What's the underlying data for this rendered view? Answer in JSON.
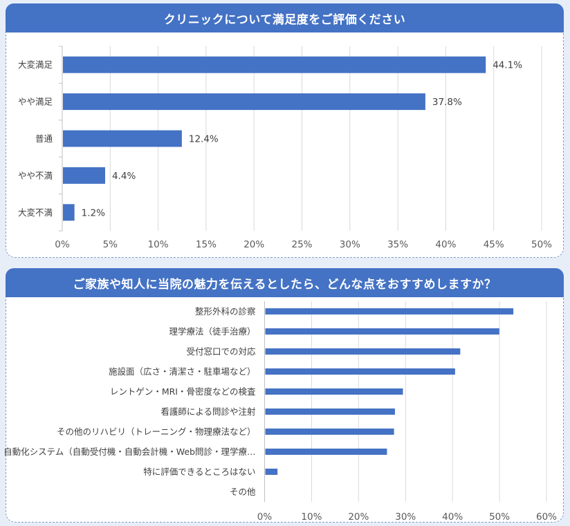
{
  "colors": {
    "bar": "#4472C4",
    "header": "#4472C4",
    "grid": "#D9D9D9",
    "background": "#E8EEF8"
  },
  "chart_data": [
    {
      "type": "bar",
      "orientation": "horizontal",
      "title": "クリニックについて満足度をご評価ください",
      "categories": [
        "大変満足",
        "やや満足",
        "普通",
        "やや不満",
        "大変不満"
      ],
      "values": [
        44.1,
        37.8,
        12.4,
        4.4,
        1.2
      ],
      "data_labels": [
        "44.1%",
        "37.8%",
        "12.4%",
        "4.4%",
        "1.2%"
      ],
      "xlim": [
        0,
        50
      ],
      "xticks": [
        0,
        5,
        10,
        15,
        20,
        25,
        30,
        35,
        40,
        45,
        50
      ],
      "xtick_labels": [
        "0%",
        "5%",
        "10%",
        "15%",
        "20%",
        "25%",
        "30%",
        "35%",
        "40%",
        "45%",
        "50%"
      ],
      "grid": true,
      "xlabel": "",
      "ylabel": ""
    },
    {
      "type": "bar",
      "orientation": "horizontal",
      "title": "ご家族や知人に当院の魅力を伝えるとしたら、どんな点をおすすめしますか？",
      "categories": [
        "整形外科の診察",
        "理学療法（徒手治療）",
        "受付窓口での対応",
        "施設面（広さ・清潔さ・駐車場など）",
        "レントゲン・MRI・骨密度などの検査",
        "看護師による問診や注射",
        "その他のリハビリ（トレーニング・物理療法など）",
        "自動化システム（自動受付機・自動会計機・Web問診・理学療…",
        "特に評価できるところはない",
        "その他"
      ],
      "values": [
        52.8,
        49.8,
        41.5,
        40.4,
        29.3,
        27.6,
        27.4,
        25.9,
        2.6,
        0
      ],
      "xlim": [
        0,
        60
      ],
      "xticks": [
        0,
        10,
        20,
        30,
        40,
        50,
        60
      ],
      "xtick_labels": [
        "0%",
        "10%",
        "20%",
        "30%",
        "40%",
        "50%",
        "60%"
      ],
      "grid": true,
      "xlabel": "",
      "ylabel": ""
    }
  ]
}
